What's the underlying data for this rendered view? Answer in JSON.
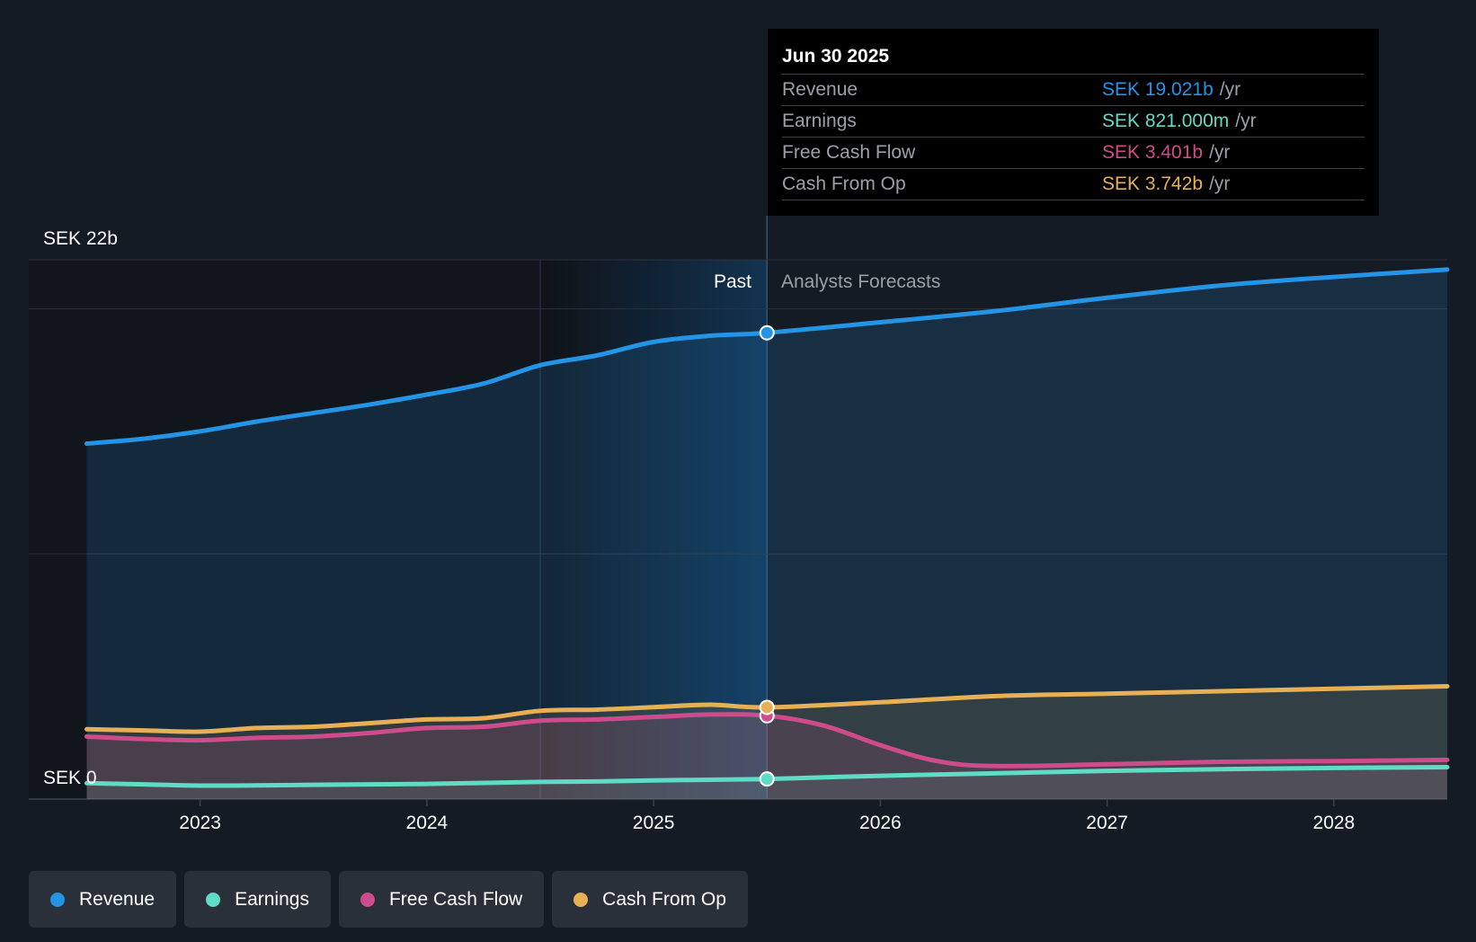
{
  "colors": {
    "revenue": "#2394e6",
    "earnings": "#5fdcc6",
    "free_cash_flow": "#cf4c8c",
    "cash_from_op": "#e8b055",
    "axis_text": "#ffffff",
    "muted_text": "#9aa0a6"
  },
  "tooltip": {
    "date": "Jun 30 2025",
    "rows": [
      {
        "label": "Revenue",
        "value": "SEK 19.021b",
        "unit": "/yr",
        "color": "#2394e6"
      },
      {
        "label": "Earnings",
        "value": "SEK 821.000m",
        "unit": "/yr",
        "color": "#5fdcc6"
      },
      {
        "label": "Free Cash Flow",
        "value": "SEK 3.401b",
        "unit": "/yr",
        "color": "#cf4c8c"
      },
      {
        "label": "Cash From Op",
        "value": "SEK 3.742b",
        "unit": "/yr",
        "color": "#e8b055"
      }
    ]
  },
  "legend": [
    {
      "label": "Revenue",
      "color": "#2394e6"
    },
    {
      "label": "Earnings",
      "color": "#5fdcc6"
    },
    {
      "label": "Free Cash Flow",
      "color": "#cf4c8c"
    },
    {
      "label": "Cash From Op",
      "color": "#e8b055"
    }
  ],
  "chart_data": {
    "type": "area",
    "title": "",
    "xlabel": "",
    "ylabel": "",
    "ylim": [
      0,
      22
    ],
    "y_unit": "SEK b",
    "y_labels": {
      "top": "SEK 22b",
      "bottom": "SEK 0"
    },
    "x_ticks": [
      2023,
      2024,
      2025,
      2026,
      2027,
      2028
    ],
    "xlim": [
      2022.5,
      2028.5
    ],
    "past_label": "Past",
    "forecast_label": "Analysts Forecasts",
    "forecast_start": 2025.5,
    "highlight_start": 2024.5,
    "series": [
      {
        "name": "Revenue",
        "key": "revenue",
        "points": [
          [
            2022.5,
            14.5
          ],
          [
            2022.75,
            14.7
          ],
          [
            2023.0,
            15.0
          ],
          [
            2023.25,
            15.4
          ],
          [
            2023.5,
            15.75
          ],
          [
            2023.75,
            16.1
          ],
          [
            2024.0,
            16.5
          ],
          [
            2024.25,
            16.95
          ],
          [
            2024.5,
            17.7
          ],
          [
            2024.75,
            18.1
          ],
          [
            2025.0,
            18.65
          ],
          [
            2025.25,
            18.9
          ],
          [
            2025.5,
            19.021
          ],
          [
            2026.0,
            19.45
          ],
          [
            2026.5,
            19.9
          ],
          [
            2027.0,
            20.45
          ],
          [
            2027.5,
            20.95
          ],
          [
            2028.0,
            21.3
          ],
          [
            2028.5,
            21.6
          ]
        ]
      },
      {
        "name": "Earnings",
        "key": "earnings",
        "points": [
          [
            2022.5,
            0.65
          ],
          [
            2022.75,
            0.6
          ],
          [
            2023.0,
            0.55
          ],
          [
            2023.25,
            0.56
          ],
          [
            2023.5,
            0.58
          ],
          [
            2023.75,
            0.6
          ],
          [
            2024.0,
            0.62
          ],
          [
            2024.25,
            0.66
          ],
          [
            2024.5,
            0.7
          ],
          [
            2024.75,
            0.72
          ],
          [
            2025.0,
            0.76
          ],
          [
            2025.25,
            0.79
          ],
          [
            2025.5,
            0.821
          ],
          [
            2026.0,
            0.95
          ],
          [
            2026.5,
            1.05
          ],
          [
            2027.0,
            1.15
          ],
          [
            2027.5,
            1.22
          ],
          [
            2028.0,
            1.27
          ],
          [
            2028.5,
            1.3
          ]
        ]
      },
      {
        "name": "Free Cash Flow",
        "key": "free_cash_flow",
        "points": [
          [
            2022.5,
            2.55
          ],
          [
            2022.75,
            2.45
          ],
          [
            2023.0,
            2.4
          ],
          [
            2023.25,
            2.5
          ],
          [
            2023.5,
            2.55
          ],
          [
            2023.75,
            2.7
          ],
          [
            2024.0,
            2.9
          ],
          [
            2024.25,
            2.95
          ],
          [
            2024.5,
            3.2
          ],
          [
            2024.75,
            3.25
          ],
          [
            2025.0,
            3.35
          ],
          [
            2025.25,
            3.45
          ],
          [
            2025.5,
            3.401
          ],
          [
            2025.75,
            3.0
          ],
          [
            2026.0,
            2.2
          ],
          [
            2026.25,
            1.55
          ],
          [
            2026.5,
            1.35
          ],
          [
            2027.0,
            1.42
          ],
          [
            2027.5,
            1.52
          ],
          [
            2028.0,
            1.55
          ],
          [
            2028.5,
            1.6
          ]
        ]
      },
      {
        "name": "Cash From Op",
        "key": "cash_from_op",
        "points": [
          [
            2022.5,
            2.85
          ],
          [
            2022.75,
            2.8
          ],
          [
            2023.0,
            2.75
          ],
          [
            2023.25,
            2.9
          ],
          [
            2023.5,
            2.95
          ],
          [
            2023.75,
            3.1
          ],
          [
            2024.0,
            3.25
          ],
          [
            2024.25,
            3.3
          ],
          [
            2024.5,
            3.6
          ],
          [
            2024.75,
            3.65
          ],
          [
            2025.0,
            3.75
          ],
          [
            2025.25,
            3.85
          ],
          [
            2025.5,
            3.742
          ],
          [
            2026.0,
            3.95
          ],
          [
            2026.5,
            4.2
          ],
          [
            2027.0,
            4.3
          ],
          [
            2027.5,
            4.4
          ],
          [
            2028.0,
            4.5
          ],
          [
            2028.5,
            4.6
          ]
        ]
      }
    ],
    "markers_at": 2025.5
  }
}
